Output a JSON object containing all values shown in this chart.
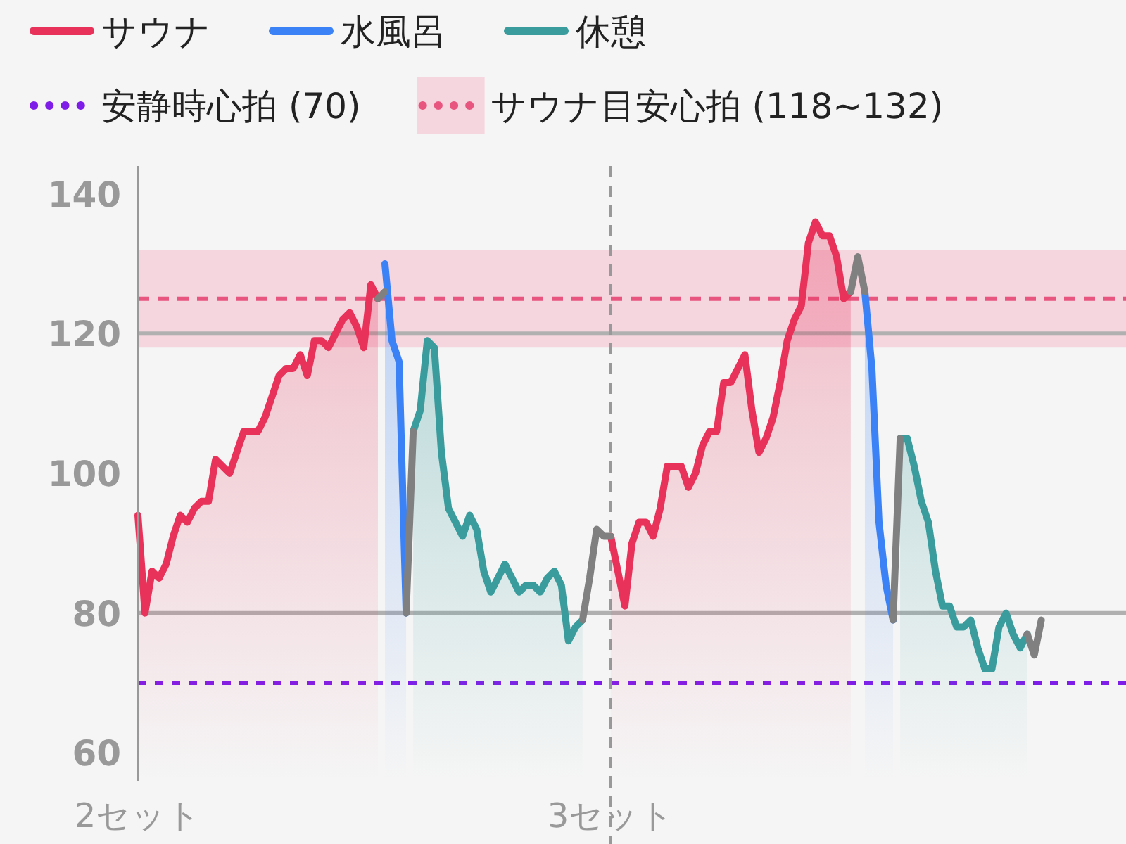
{
  "chart_data": {
    "type": "area",
    "categories": [
      "2セット",
      null,
      null,
      null,
      null,
      null,
      null,
      null,
      null,
      null,
      null,
      null,
      null,
      null,
      null,
      null,
      null,
      null,
      null,
      null,
      null,
      null,
      null,
      null,
      null,
      null,
      null,
      null,
      null,
      null,
      null,
      null,
      null,
      null,
      null,
      null,
      null,
      null,
      null,
      null,
      null,
      null,
      null,
      null,
      null,
      null,
      null,
      null,
      null,
      null,
      null,
      null,
      null,
      null,
      null,
      null,
      null,
      null,
      null,
      null,
      null,
      null,
      null,
      null,
      null,
      null,
      null,
      "3セット",
      null,
      null,
      null,
      null,
      null,
      null,
      null,
      null,
      null,
      null,
      null,
      null,
      null,
      null,
      null,
      null,
      null,
      null,
      null,
      null,
      null,
      null,
      null,
      null,
      null,
      null,
      null,
      null,
      null,
      null,
      null,
      null,
      null,
      null,
      null,
      null,
      null,
      null,
      null,
      null,
      null,
      null,
      null,
      null,
      null,
      null,
      null,
      null,
      null,
      null,
      null,
      null,
      null,
      null,
      null,
      null,
      null,
      null,
      null,
      null,
      null,
      null,
      null,
      null,
      null,
      null,
      null,
      null,
      null,
      null,
      null,
      null,
      null
    ],
    "ylim": [
      56,
      144
    ],
    "yticks": [
      60,
      80,
      100,
      120,
      140
    ],
    "legend": "top",
    "series": [
      {
        "name": "サウナ",
        "color": "#e8325a",
        "values": [
          94,
          80,
          86,
          85,
          87,
          91,
          94,
          93,
          95,
          96,
          96,
          102,
          101,
          100,
          103,
          106,
          106,
          106,
          108,
          111,
          114,
          115,
          115,
          117,
          114,
          119,
          119,
          118,
          120,
          122,
          123,
          121,
          118,
          127,
          125,
          null,
          null,
          null,
          null,
          null,
          null,
          null,
          null,
          null,
          null,
          null,
          null,
          null,
          null,
          null,
          null,
          null,
          null,
          null,
          null,
          null,
          null,
          null,
          null,
          null,
          null,
          null,
          null,
          null,
          null,
          null,
          null,
          91,
          86,
          81,
          90,
          93,
          93,
          91,
          95,
          101,
          101,
          101,
          98,
          100,
          104,
          106,
          106,
          113,
          113,
          115,
          117,
          109,
          103,
          105,
          108,
          113,
          119,
          122,
          124,
          133,
          136,
          134,
          134,
          131,
          125,
          126,
          null,
          null,
          null,
          null,
          null,
          null,
          null,
          null,
          null,
          null,
          null,
          null,
          null,
          null,
          null,
          null,
          null,
          null,
          null,
          null,
          null,
          null,
          null,
          null,
          null,
          null,
          null,
          null,
          null,
          null,
          null,
          null,
          null,
          null,
          null,
          null,
          null,
          null,
          null
        ]
      },
      {
        "name": "水風呂",
        "color": "#3b82f6",
        "values": [
          null,
          null,
          null,
          null,
          null,
          null,
          null,
          null,
          null,
          null,
          null,
          null,
          null,
          null,
          null,
          null,
          null,
          null,
          null,
          null,
          null,
          null,
          null,
          null,
          null,
          null,
          null,
          null,
          null,
          null,
          null,
          null,
          null,
          null,
          null,
          130,
          119,
          116,
          80,
          null,
          null,
          null,
          null,
          null,
          null,
          null,
          null,
          null,
          null,
          null,
          null,
          null,
          null,
          null,
          null,
          null,
          null,
          null,
          null,
          null,
          null,
          null,
          null,
          null,
          null,
          null,
          null,
          null,
          null,
          null,
          null,
          null,
          null,
          null,
          null,
          null,
          null,
          null,
          null,
          null,
          null,
          null,
          null,
          null,
          null,
          null,
          null,
          null,
          null,
          null,
          null,
          null,
          null,
          null,
          null,
          null,
          null,
          null,
          null,
          null,
          null,
          null,
          null,
          126,
          115,
          93,
          84,
          79,
          null,
          null,
          null,
          null,
          null,
          null,
          null,
          null,
          null,
          null,
          null,
          null,
          null,
          null,
          null,
          null,
          null,
          null,
          null,
          null,
          null,
          null,
          null,
          null,
          null,
          null,
          null,
          null,
          null,
          null,
          null,
          null,
          null
        ]
      },
      {
        "name": "休憩",
        "color": "#3a9c9c",
        "values": [
          null,
          null,
          null,
          null,
          null,
          null,
          null,
          null,
          null,
          null,
          null,
          null,
          null,
          null,
          null,
          null,
          null,
          null,
          null,
          null,
          null,
          null,
          null,
          null,
          null,
          null,
          null,
          null,
          null,
          null,
          null,
          null,
          null,
          null,
          null,
          null,
          null,
          null,
          null,
          106,
          109,
          119,
          118,
          103,
          95,
          93,
          91,
          94,
          92,
          86,
          83,
          85,
          87,
          85,
          83,
          84,
          84,
          83,
          85,
          86,
          84,
          76,
          78,
          79,
          null,
          null,
          null,
          null,
          null,
          null,
          null,
          null,
          null,
          null,
          null,
          null,
          null,
          null,
          null,
          null,
          null,
          null,
          null,
          null,
          null,
          null,
          null,
          null,
          null,
          null,
          null,
          null,
          null,
          null,
          null,
          null,
          null,
          null,
          null,
          null,
          null,
          null,
          null,
          null,
          null,
          null,
          null,
          null,
          105,
          105,
          101,
          96,
          93,
          86,
          81,
          81,
          78,
          78,
          79,
          75,
          72,
          72,
          78,
          80,
          77,
          75,
          77,
          null,
          null,
          null,
          null,
          null,
          null,
          null,
          null,
          null,
          null,
          null,
          null,
          null,
          null
        ]
      },
      {
        "color": "#808080",
        "type": "line",
        "values": [
          null,
          null,
          null,
          null,
          null,
          null,
          null,
          null,
          null,
          null,
          null,
          null,
          null,
          null,
          null,
          null,
          null,
          null,
          null,
          null,
          null,
          null,
          null,
          null,
          null,
          null,
          null,
          null,
          null,
          null,
          null,
          null,
          null,
          null,
          125,
          126,
          null,
          null,
          80,
          106,
          null,
          null,
          null,
          null,
          null,
          null,
          null,
          null,
          null,
          null,
          null,
          null,
          null,
          null,
          null,
          null,
          null,
          null,
          null,
          null,
          null,
          null,
          null,
          79,
          85,
          92,
          91,
          91,
          null,
          null,
          null,
          null,
          null,
          null,
          null,
          null,
          null,
          null,
          null,
          null,
          null,
          null,
          null,
          null,
          null,
          null,
          null,
          null,
          null,
          null,
          null,
          null,
          null,
          null,
          null,
          null,
          null,
          null,
          null,
          null,
          null,
          126,
          131,
          126,
          null,
          null,
          null,
          79,
          105,
          null,
          null,
          null,
          null,
          null,
          null,
          null,
          null,
          null,
          null,
          null,
          null,
          null,
          null,
          null,
          null,
          null,
          77,
          74,
          79,
          null,
          null,
          null,
          null,
          null,
          null,
          null,
          null,
          null,
          null,
          null,
          null
        ]
      }
    ],
    "bands": [
      {
        "axis": "y",
        "from": 118,
        "to": 132,
        "label": "サウナ目安心拍 (118~132)",
        "color": "#f5d5de"
      }
    ],
    "ref_lines": [
      {
        "axis": "y",
        "value": 70,
        "label": "安静時心拍 (70)",
        "color": "#7f1de8",
        "line_style": "dotted"
      },
      {
        "axis": "y",
        "value": 125,
        "color": "#e8557f",
        "line_style": "dashed"
      },
      {
        "axis": "y",
        "value": 80,
        "color": "#b0b0b0",
        "line_style": "solid"
      },
      {
        "axis": "y",
        "value": 120,
        "color": "#b0b0b0",
        "line_style": "solid"
      },
      {
        "axis": "x",
        "value": "3セット",
        "color": "#999999",
        "line_style": "dashed"
      }
    ]
  }
}
